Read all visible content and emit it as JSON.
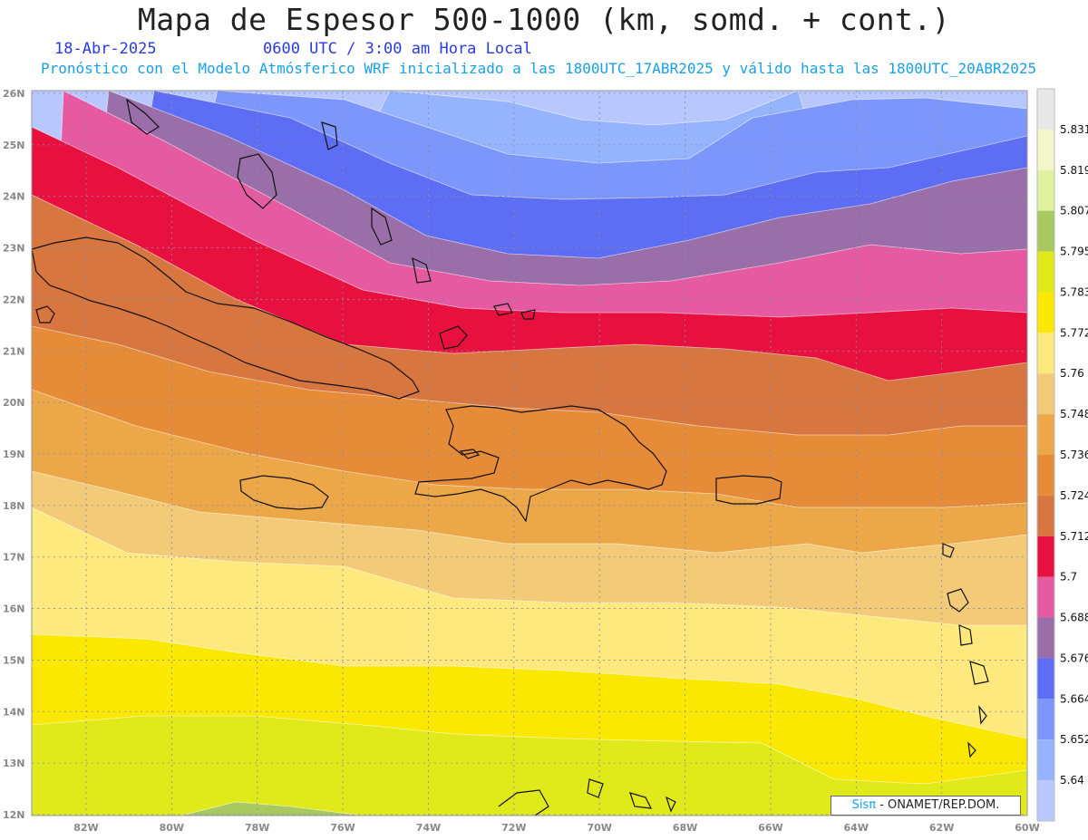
{
  "title": "Mapa de Espesor 500-1000 (km, somd. + cont.)",
  "date": "18-Abr-2025",
  "valid_time": "0600 UTC / 3:00 am Hora Local",
  "model_info": "Pronóstico con el Modelo Atmósferico WRF inicializado a las 1800UTC_17ABR2025 y válido hasta las  1800UTC_20ABR2025",
  "credit": {
    "brand": "Sisπ",
    "text": " - ONAMET/REP.DOM."
  },
  "axes": {
    "lat_labels": [
      "26N",
      "25N",
      "24N",
      "23N",
      "22N",
      "21N",
      "20N",
      "19N",
      "18N",
      "17N",
      "16N",
      "15N",
      "14N",
      "13N",
      "12N"
    ],
    "lon_labels": [
      "82W",
      "80W",
      "78W",
      "76W",
      "74W",
      "72W",
      "70W",
      "68W",
      "66W",
      "64W",
      "62W",
      "60W"
    ]
  },
  "colorbar": {
    "labels": [
      "5.831",
      "5.819",
      "5.807",
      "5.795",
      "5.783",
      "5.772",
      "5.76",
      "5.748",
      "5.736",
      "5.724",
      "5.712",
      "5.7",
      "5.688",
      "5.676",
      "5.664",
      "5.652",
      "5.64"
    ],
    "colors": [
      "#e8e8e8",
      "#f2f6c8",
      "#e0f2a0",
      "#a8c860",
      "#e0ea1a",
      "#fae800",
      "#fde97e",
      "#f2ca78",
      "#eca848",
      "#e68c38",
      "#d87640",
      "#e8103e",
      "#e65aa2",
      "#9a6ea8",
      "#5e6ef4",
      "#7c96fc",
      "#96b4fe",
      "#b8c8ff"
    ]
  },
  "map": {
    "region": "Caribe / República Dominicana",
    "bands": [
      {
        "value": "5.652",
        "color": "#b8c8ff"
      },
      {
        "value": "5.664",
        "color": "#96b4fe"
      },
      {
        "value": "5.676",
        "color": "#7c96fc"
      },
      {
        "value": "5.688",
        "color": "#5e6ef4"
      },
      {
        "value": "5.7",
        "color": "#9a6ea8"
      },
      {
        "value": "5.712",
        "color": "#e65aa2"
      },
      {
        "value": "5.724",
        "color": "#e8103e"
      },
      {
        "value": "5.736",
        "color": "#d87640"
      },
      {
        "value": "5.748",
        "color": "#e68c38"
      },
      {
        "value": "5.76",
        "color": "#eca848"
      },
      {
        "value": "5.772",
        "color": "#f2ca78"
      },
      {
        "value": "5.783",
        "color": "#fde97e"
      },
      {
        "value": "5.795",
        "color": "#fae800"
      },
      {
        "value": "5.807",
        "color": "#e0ea1a"
      },
      {
        "value": "5.819",
        "color": "#a8c860"
      }
    ]
  }
}
